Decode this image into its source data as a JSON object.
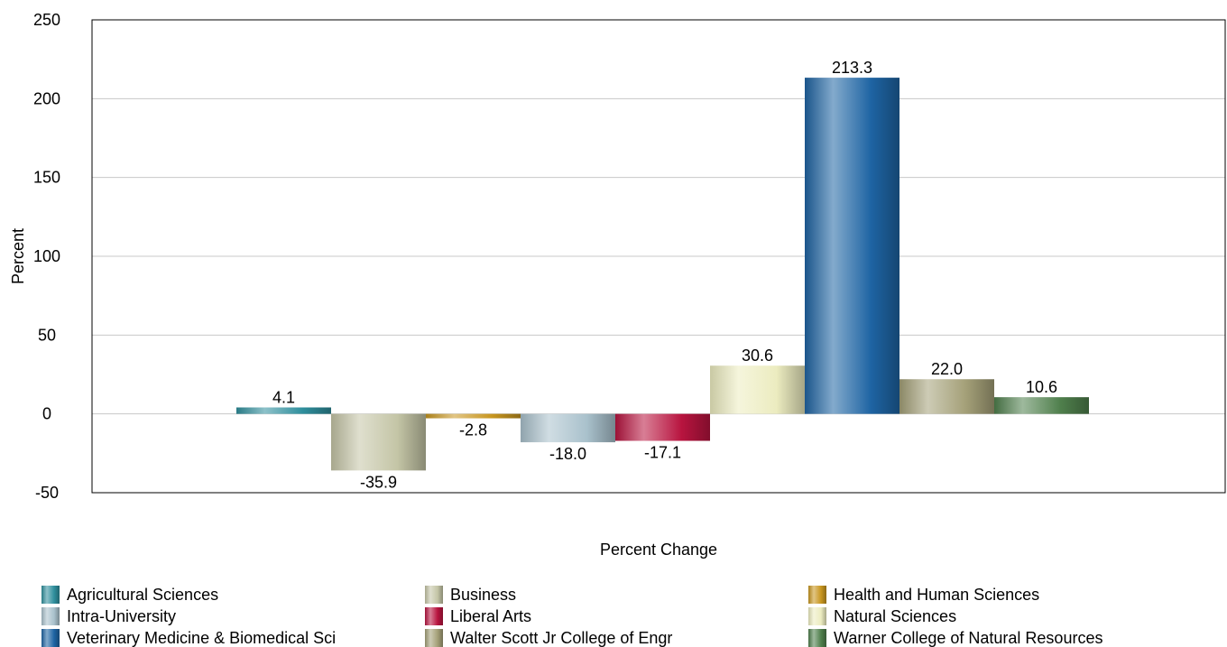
{
  "chart_data": {
    "type": "bar",
    "title": "",
    "xlabel": "Percent Change",
    "ylabel": "Percent",
    "ylim": [
      -50,
      250
    ],
    "yticks": [
      -50,
      0,
      50,
      100,
      150,
      200,
      250
    ],
    "grid": true,
    "legend_position": "bottom",
    "series": [
      {
        "name": "Agricultural Sciences",
        "value": 4.1,
        "label": "4.1",
        "color": "#2f8f9d"
      },
      {
        "name": "Business",
        "value": -35.9,
        "label": "-35.9",
        "color": "#c4c5a6"
      },
      {
        "name": "Health and Human Sciences",
        "value": -2.8,
        "label": "-2.8",
        "color": "#c8961f"
      },
      {
        "name": "Intra-University",
        "value": -18.0,
        "label": "-18.0",
        "color": "#a9c1cc"
      },
      {
        "name": "Liberal Arts",
        "value": -17.1,
        "label": "-17.1",
        "color": "#b8143f"
      },
      {
        "name": "Natural Sciences",
        "value": 30.6,
        "label": "30.6",
        "color": "#ececc0"
      },
      {
        "name": "Veterinary Medicine & Biomedical Sci",
        "value": 213.3,
        "label": "213.3",
        "color": "#1e64a3"
      },
      {
        "name": "Walter Scott Jr College of Engr",
        "value": 22.0,
        "label": "22.0",
        "color": "#a4a078"
      },
      {
        "name": "Warner College of Natural Resources",
        "value": 10.6,
        "label": "10.6",
        "color": "#4f7f4c"
      }
    ]
  }
}
